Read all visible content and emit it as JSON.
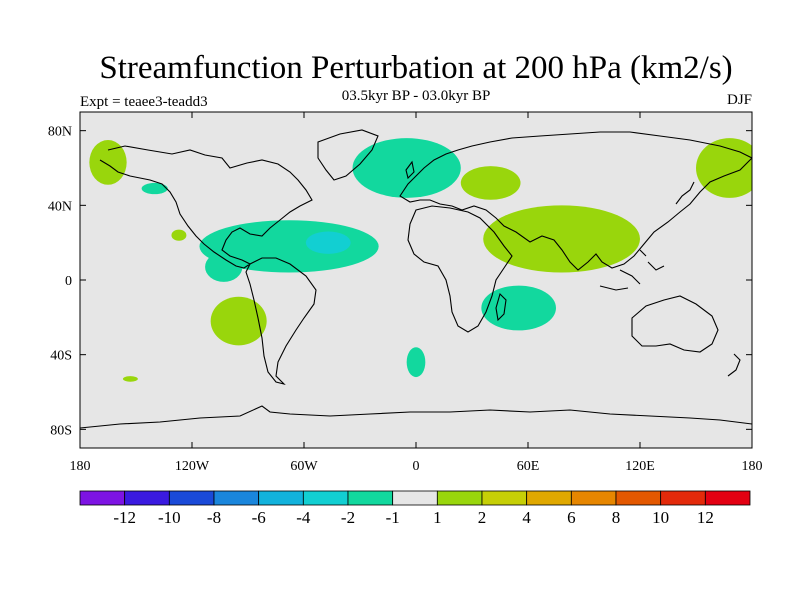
{
  "title": "Streamfunction Perturbation at 200 hPa (km2/s)",
  "subtitle": "03.5kyr BP - 03.0kyr BP",
  "experiment": "Expt = teaee3-teadd3",
  "season": "DJF",
  "map": {
    "lon_range": [
      -180,
      180
    ],
    "lat_range": [
      -90,
      90
    ],
    "x_tick_labels": [
      "180",
      "120W",
      "60W",
      "0",
      "60E",
      "120E",
      "180"
    ],
    "x_tick_values": [
      -180,
      -120,
      -60,
      0,
      60,
      120,
      180
    ],
    "y_tick_labels": [
      "80S",
      "40S",
      "0",
      "40N",
      "80N"
    ],
    "y_tick_values": [
      -80,
      -40,
      0,
      40,
      80
    ],
    "background_color": "#e6e6e6"
  },
  "colorbar": {
    "labels": [
      "-12",
      "-10",
      "-8",
      "-6",
      "-4",
      "-2",
      "-1",
      "1",
      "2",
      "4",
      "6",
      "8",
      "10",
      "12"
    ],
    "colors": [
      "#7d13e3",
      "#3a1ae0",
      "#1a4ad8",
      "#1a86dc",
      "#12b2dc",
      "#12cfd2",
      "#12d89e",
      "#e6e6e6",
      "#99d60c",
      "#c6cf06",
      "#e0a800",
      "#e68600",
      "#e35800",
      "#e32a0a",
      "#e30012"
    ]
  },
  "regions": [
    {
      "name": "canada-arctic-negative",
      "lon": -165,
      "lat": 63,
      "rx": 10,
      "ry": 12,
      "value": 1.5
    },
    {
      "name": "north-pacific-negative",
      "lon": -140,
      "lat": 49,
      "rx": 7,
      "ry": 3,
      "value": -1.5
    },
    {
      "name": "east-pacific-small",
      "lon": -127,
      "lat": 24,
      "rx": 4,
      "ry": 3,
      "value": 1.5
    },
    {
      "name": "north-atlantic-negative",
      "lon": -5,
      "lat": 60,
      "rx": 29,
      "ry": 16,
      "value": -1.5
    },
    {
      "name": "tropical-atlantic-negative",
      "lon": -68,
      "lat": 18,
      "rx": 48,
      "ry": 14,
      "value": -1.5
    },
    {
      "name": "tropical-atlantic-core",
      "lon": -47,
      "lat": 20,
      "rx": 12,
      "ry": 6,
      "value": -3
    },
    {
      "name": "east-tropical-pacific-negative",
      "lon": -103,
      "lat": 7,
      "rx": 10,
      "ry": 8,
      "value": -1.5
    },
    {
      "name": "southeast-pacific-positive",
      "lon": -95,
      "lat": -22,
      "rx": 15,
      "ry": 13,
      "value": 1.5
    },
    {
      "name": "south-pacific-small",
      "lon": -153,
      "lat": -53,
      "rx": 4,
      "ry": 1.5,
      "value": 1.5
    },
    {
      "name": "mediterranean-positive",
      "lon": 40,
      "lat": 52,
      "rx": 16,
      "ry": 9,
      "value": 1.5
    },
    {
      "name": "south-asia-positive",
      "lon": 78,
      "lat": 22,
      "rx": 42,
      "ry": 18,
      "value": 1.5
    },
    {
      "name": "south-indian-ocean-negative",
      "lon": 55,
      "lat": -15,
      "rx": 20,
      "ry": 12,
      "value": -1.5
    },
    {
      "name": "southern-ocean-negative",
      "lon": 0,
      "lat": -44,
      "rx": 5,
      "ry": 8,
      "value": -1.5
    },
    {
      "name": "west-pacific-positive",
      "lon": 168,
      "lat": 60,
      "rx": 18,
      "ry": 16,
      "value": 1.5
    }
  ]
}
